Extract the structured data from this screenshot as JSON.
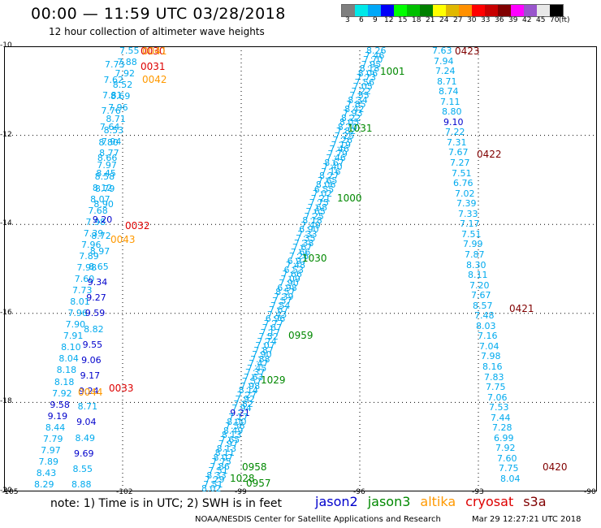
{
  "title": "00:00 — 11:59 UTC 03/28/2018",
  "subtitle": "12 hour collection of altimeter wave heights",
  "colorbar": {
    "colors": [
      "#7f7f7f",
      "#00e8e8",
      "#00a8f8",
      "#0000f8",
      "#00ff00",
      "#00c000",
      "#008000",
      "#ffff00",
      "#e0b800",
      "#ff9000",
      "#ff0000",
      "#c80000",
      "#800000",
      "#ff00ff",
      "#9955cc",
      "#e8e8e8",
      "#000000"
    ],
    "labels": [
      "3",
      "6",
      "9",
      "12",
      "15",
      "18",
      "21",
      "24",
      "27",
      "30",
      "33",
      "36",
      "39",
      "42",
      "45",
      "70",
      "(ft)"
    ]
  },
  "axes": {
    "lat_labels": [
      "-10",
      "-12",
      "-14",
      "-16",
      "-18",
      "-20"
    ],
    "lon_labels": [
      "-105",
      "-102",
      "-99",
      "-96",
      "-93",
      "-90"
    ]
  },
  "map_data": {
    "lat_range": [
      -20,
      -10
    ],
    "lon_range": [
      -105,
      -90
    ],
    "sat_colors": {
      "jason2": "#0000cc",
      "jason3": "#008800",
      "altika": "#ff9900",
      "cryosat": "#dd0000",
      "s3a": "#800000"
    },
    "height_color_bands": {
      "light": "#00aaee",
      "dark": "#0000cc"
    },
    "tracks": [
      {
        "id": "t1",
        "values": [
          "7.55",
          "7.88",
          "7.92",
          "8.52",
          "8.69",
          "7.96",
          "8.71",
          "8.53",
          "7.94",
          "8.77",
          "7.97",
          "8.58",
          "8.12",
          "8.07",
          "7.68",
          "7.98",
          "7.39",
          "7.96",
          "7.89",
          "7.98",
          "7.60",
          "7.73",
          "8.01",
          "7.96",
          "7.90",
          "7.91",
          "8.10",
          "8.04",
          "8.18",
          "8.18",
          "7.92",
          "9.58",
          "9.19",
          "8.44",
          "7.79",
          "7.97",
          "7.89",
          "8.43",
          "8.29"
        ]
      },
      {
        "id": "t2",
        "values": [
          "7.73",
          "7.62",
          "7.81",
          "7.76",
          "7.64",
          "8.80",
          "8.66",
          "8.45",
          "8.79",
          "8.90",
          "9.20",
          "8.72",
          "8.97",
          "8.65",
          "9.34",
          "9.27",
          "9.59",
          "8.82",
          "9.55",
          "9.06",
          "9.17",
          "9.24",
          "8.71",
          "9.04",
          "8.49",
          "9.69",
          "8.55",
          "8.88"
        ]
      },
      {
        "id": "t3",
        "values": [
          "8.26",
          "7.46",
          "7.70",
          "7.95",
          "8.18",
          "8.06",
          "7.73",
          "7.56",
          "7.05",
          "7.22",
          "7.55",
          "8.34",
          "7.85",
          "8.42",
          "7.93",
          "8.22",
          "8.05",
          "8.70",
          "7.82",
          "7.25",
          "7.26",
          "7.19",
          "7.46",
          "7.79",
          "7.46",
          "8.67",
          "7.40",
          "7.16",
          "8.27",
          "7.65",
          "8.06",
          "6.55",
          "7.02",
          "7.21",
          "7.75",
          "7.68",
          "7.65",
          "7.25",
          "8.18",
          "7.49",
          "6.90",
          "7.33",
          "7.35",
          "7.38",
          "7.67",
          "7.66",
          "7.26",
          "6.97",
          "7.48",
          "6.53",
          "7.66",
          "7.09",
          "7.90",
          "6.98",
          "8.57",
          "7.39",
          "7.57",
          "7.54",
          "7.67",
          "7.43",
          "6.96",
          "7.77",
          "7.67",
          "7.17",
          "7.52",
          "7.74",
          "7.07",
          "7.87",
          "7.90",
          "7.88",
          "7.47",
          "7.45",
          "7.37",
          "7.63",
          "7.57",
          "7.98",
          "8.14",
          "7.27",
          "7.92",
          "7.82",
          "7.94",
          "9.21",
          "7.17",
          "8.00",
          "7.56",
          "8.49",
          "8.13",
          "7.65",
          "7.97",
          "8.13",
          "8.11",
          "8.07",
          "7.75",
          "7.86",
          "7.51",
          "8.33",
          "7.29",
          "7.51",
          "8.02"
        ]
      },
      {
        "id": "t4",
        "values": [
          "7.63",
          "7.94",
          "7.24",
          "8.71",
          "8.74",
          "7.11",
          "8.80",
          "9.10",
          "7.22",
          "7.31",
          "7.67",
          "7.27",
          "7.51",
          "6.76",
          "7.02",
          "7.39",
          "7.33",
          "7.17",
          "7.51",
          "7.99",
          "7.87",
          "8.30",
          "8.11",
          "7.20",
          "7.67",
          "8.57",
          "7.48",
          "8.03",
          "7.16",
          "7.04",
          "7.98",
          "8.16",
          "7.83",
          "7.75",
          "7.06",
          "7.53",
          "7.44",
          "7.28",
          "6.99",
          "7.92",
          "7.60",
          "7.75",
          "8.04"
        ]
      }
    ],
    "time_labels": [
      {
        "text": "0030",
        "sat": "cryosat"
      },
      {
        "text": "0031",
        "sat": "cryosat"
      },
      {
        "text": "0041",
        "sat": "altika"
      },
      {
        "text": "0042",
        "sat": "altika"
      },
      {
        "text": "0032",
        "sat": "cryosat"
      },
      {
        "text": "0043",
        "sat": "altika"
      },
      {
        "text": "0033",
        "sat": "cryosat"
      },
      {
        "text": "0044",
        "sat": "altika"
      },
      {
        "text": "1001",
        "sat": "jason3"
      },
      {
        "text": "1031",
        "sat": "jason3"
      },
      {
        "text": "1000",
        "sat": "jason3"
      },
      {
        "text": "1030",
        "sat": "jason3"
      },
      {
        "text": "0959",
        "sat": "jason3"
      },
      {
        "text": "1029",
        "sat": "jason3"
      },
      {
        "text": "0958",
        "sat": "jason3"
      },
      {
        "text": "1028",
        "sat": "jason3"
      },
      {
        "text": "0957",
        "sat": "jason3"
      },
      {
        "text": "0423",
        "sat": "s3a"
      },
      {
        "text": "0422",
        "sat": "s3a"
      },
      {
        "text": "0421",
        "sat": "s3a"
      },
      {
        "text": "0420",
        "sat": "s3a"
      }
    ]
  },
  "footer": {
    "note": "note: 1) Time is in UTC; 2) SWH is in feet",
    "legend": [
      {
        "label": "jason2",
        "sat": "jason2"
      },
      {
        "label": "jason3",
        "sat": "jason3"
      },
      {
        "label": "altika",
        "sat": "altika"
      },
      {
        "label": "cryosat",
        "sat": "cryosat"
      },
      {
        "label": "s3a",
        "sat": "s3a"
      }
    ],
    "credit": "NOAA/NESDIS Center for Satellite Applications and Research",
    "timestamp": "Mar 29 12:27:21 UTC 2018"
  }
}
